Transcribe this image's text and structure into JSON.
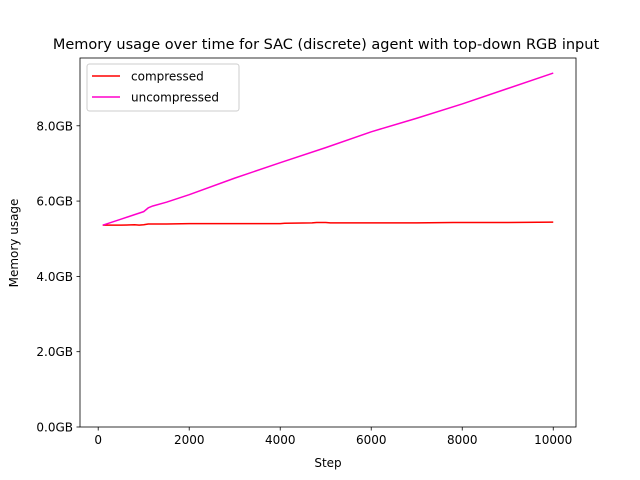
{
  "chart_data": {
    "type": "line",
    "title": "Memory usage over time for SAC (discrete) agent with top-down RGB input",
    "xlabel": "Step",
    "ylabel": "Memory usage",
    "xlim": [
      -400,
      10500
    ],
    "ylim": [
      0,
      9.8
    ],
    "xticks": [
      0,
      2000,
      4000,
      6000,
      8000,
      10000
    ],
    "yticks": [
      0,
      2,
      4,
      6,
      8
    ],
    "ytick_labels": [
      "0.0GB",
      "2.0GB",
      "4.0GB",
      "6.0GB",
      "8.0GB"
    ],
    "grid": false,
    "legend_position": "top-left",
    "series": [
      {
        "name": "compressed",
        "color": "#ff0000",
        "x": [
          100,
          500,
          800,
          900,
          1000,
          1100,
          1500,
          2000,
          3000,
          4000,
          4100,
          4700,
          4800,
          5000,
          5100,
          6000,
          7000,
          7800,
          8000,
          9000,
          10000
        ],
        "y": [
          5.36,
          5.36,
          5.37,
          5.36,
          5.37,
          5.39,
          5.39,
          5.4,
          5.4,
          5.4,
          5.41,
          5.42,
          5.43,
          5.43,
          5.42,
          5.42,
          5.42,
          5.43,
          5.43,
          5.43,
          5.44
        ]
      },
      {
        "name": "uncompressed",
        "color": "#ff00cc",
        "x": [
          100,
          500,
          800,
          1000,
          1100,
          1200,
          1500,
          2000,
          3000,
          4000,
          5000,
          6000,
          7000,
          8000,
          9000,
          10000
        ],
        "y": [
          5.36,
          5.52,
          5.64,
          5.72,
          5.82,
          5.87,
          5.97,
          6.17,
          6.61,
          7.02,
          7.42,
          7.84,
          8.2,
          8.58,
          8.99,
          9.4
        ]
      }
    ]
  }
}
